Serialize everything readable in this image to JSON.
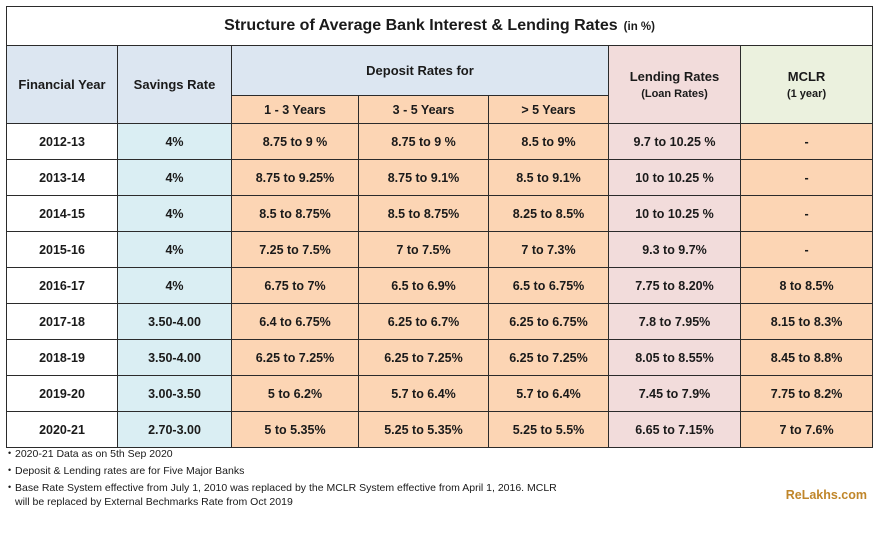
{
  "title": "Structure of Average Bank Interest & Lending Rates",
  "title_unit": "(in %)",
  "headers": {
    "financial_year": "Financial Year",
    "savings_rate": "Savings Rate",
    "deposit_rates_for": "Deposit Rates for",
    "dep_1_3": "1 - 3 Years",
    "dep_3_5": "3 - 5 Years",
    "dep_gt5": "> 5 Years",
    "lending_rates": "Lending Rates",
    "lending_rates_sub": "(Loan Rates)",
    "mclr": "MCLR",
    "mclr_sub": "(1 year)"
  },
  "rows": [
    {
      "year": "2012-13",
      "savings": "4%",
      "d1": "8.75 to 9 %",
      "d2": "8.75 to 9 %",
      "d3": "8.5 to 9%",
      "lending": "9.7 to 10.25 %",
      "mclr": "-"
    },
    {
      "year": "2013-14",
      "savings": "4%",
      "d1": "8.75 to 9.25%",
      "d2": "8.75 to 9.1%",
      "d3": "8.5 to 9.1%",
      "lending": "10 to 10.25 %",
      "mclr": "-"
    },
    {
      "year": "2014-15",
      "savings": "4%",
      "d1": "8.5 to 8.75%",
      "d2": "8.5 to 8.75%",
      "d3": "8.25 to 8.5%",
      "lending": "10 to 10.25 %",
      "mclr": "-"
    },
    {
      "year": "2015-16",
      "savings": "4%",
      "d1": "7.25 to 7.5%",
      "d2": "7 to 7.5%",
      "d3": "7 to 7.3%",
      "lending": "9.3 to 9.7%",
      "mclr": "-"
    },
    {
      "year": "2016-17",
      "savings": "4%",
      "d1": "6.75 to 7%",
      "d2": "6.5 to 6.9%",
      "d3": "6.5 to 6.75%",
      "lending": "7.75 to 8.20%",
      "mclr": "8 to  8.5%"
    },
    {
      "year": "2017-18",
      "savings": "3.50-4.00",
      "d1": "6.4 to 6.75%",
      "d2": "6.25 to 6.7%",
      "d3": "6.25 to 6.75%",
      "lending": "7.8 to 7.95%",
      "mclr": "8.15 to 8.3%"
    },
    {
      "year": "2018-19",
      "savings": "3.50-4.00",
      "d1": "6.25 to 7.25%",
      "d2": "6.25 to 7.25%",
      "d3": "6.25 to 7.25%",
      "lending": "8.05 to 8.55%",
      "mclr": "8.45 to 8.8%"
    },
    {
      "year": "2019-20",
      "savings": "3.00-3.50",
      "d1": "5 to 6.2%",
      "d2": "5.7 to 6.4%",
      "d3": "5.7 to 6.4%",
      "lending": "7.45 to 7.9%",
      "mclr": "7.75 to 8.2%"
    },
    {
      "year": "2020-21",
      "savings": "2.70-3.00",
      "d1": "5 to 5.35%",
      "d2": "5.25 to 5.35%",
      "d3": "5.25 to 5.5%",
      "lending": "6.65 to 7.15%",
      "mclr": "7 to 7.6%"
    }
  ],
  "notes": [
    "2020-21 Data as on 5th Sep 2020",
    "Deposit & Lending rates are for Five Major Banks",
    "Base Rate System effective from July 1, 2010 was replaced by the MCLR System effective from April 1, 2016. MCLR will be replaced by External Bechmarks Rate from Oct 2019"
  ],
  "brand": "ReLakhs.com",
  "colors": {
    "header_blue": "#dce6f1",
    "savings_blue": "#daeef3",
    "deposit_peach": "#fcd5b4",
    "lending_pink": "#f2dcdb",
    "mclr_header_green": "#ebf1de",
    "brand_gold": "#c0862a"
  }
}
